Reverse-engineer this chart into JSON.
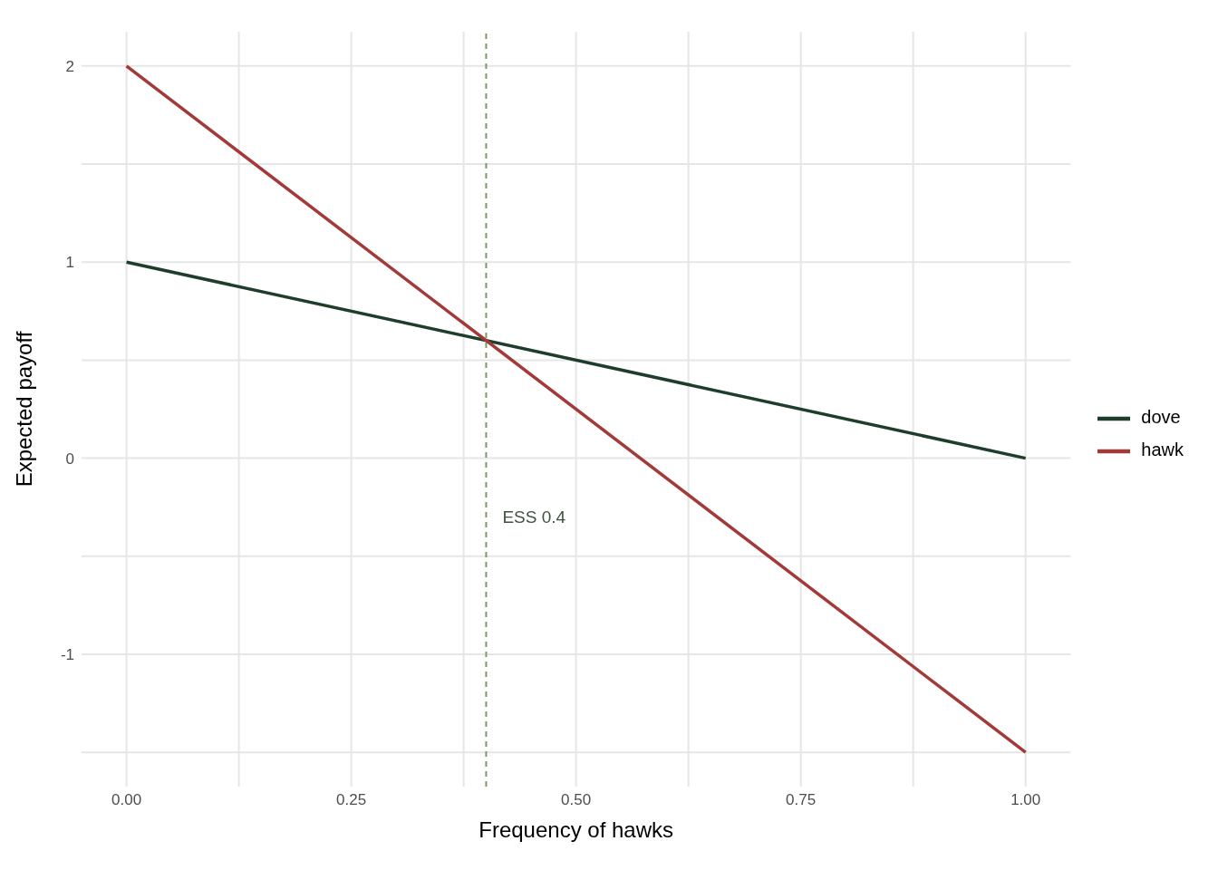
{
  "chart_data": {
    "type": "line",
    "xlabel": "Frequency of hawks",
    "ylabel": "Expected payoff",
    "series": [
      {
        "name": "dove",
        "color": "#1f3d2b",
        "values": [
          1,
          0
        ]
      },
      {
        "name": "hawk",
        "color": "#a33a3a",
        "values": [
          2,
          -1.5
        ]
      }
    ],
    "x": [
      0,
      1
    ],
    "xlim": [
      -0.05,
      1.05
    ],
    "xticks": [
      {
        "value": 0,
        "label": "0.00"
      },
      {
        "value": 0.125,
        "label": null
      },
      {
        "value": 0.25,
        "label": "0.25"
      },
      {
        "value": 0.375,
        "label": null
      },
      {
        "value": 0.5,
        "label": "0.50"
      },
      {
        "value": 0.625,
        "label": null
      },
      {
        "value": 0.75,
        "label": "0.75"
      },
      {
        "value": 0.875,
        "label": null
      },
      {
        "value": 1,
        "label": "1.00"
      }
    ],
    "ylim": [
      -1.675,
      2.175
    ],
    "yticks": [
      {
        "value": -1.5,
        "label": null
      },
      -1,
      {
        "value": -0.5,
        "label": null
      },
      0,
      {
        "value": 0.5,
        "label": null
      },
      1,
      {
        "value": 1.5,
        "label": null
      },
      2
    ],
    "ref_lines": [
      {
        "axis": "x",
        "value": 0.4,
        "color": "#7f9a65",
        "line_style": "dashed"
      }
    ],
    "annotations": [
      {
        "text": "ESS 0.4",
        "x": 0.4,
        "y": -0.3
      }
    ],
    "grid": true,
    "legend": "right",
    "marker": "none",
    "line_style": "solid"
  }
}
